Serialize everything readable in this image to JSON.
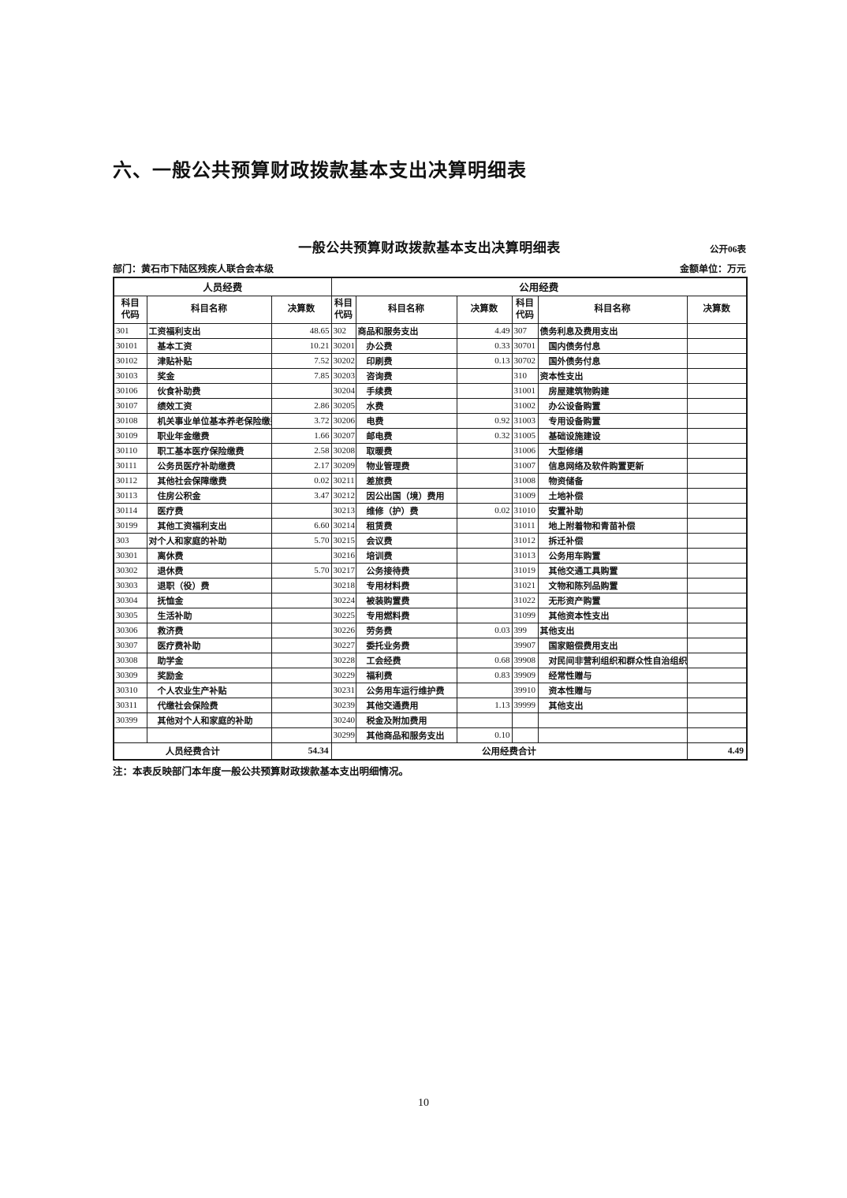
{
  "page": {
    "heading": "六、一般公共预算财政拨款基本支出决算明细表",
    "page_number": "10"
  },
  "table": {
    "title": "一般公共预算财政拨款基本支出决算明细表",
    "form_code": "公开06表",
    "department": "部门：黄石市下陆区残疾人联合会本级",
    "unit": "金额单位：万元",
    "group_headers": {
      "personnel": "人员经费",
      "public": "公用经费"
    },
    "col_headers": {
      "code": "科目\n代码",
      "name": "科目名称",
      "amount": "决算数"
    },
    "rows": [
      [
        "301",
        "工资福利支出",
        "48.65",
        "302",
        "商品和服务支出",
        "4.49",
        "307",
        "债务利息及费用支出",
        ""
      ],
      [
        "30101",
        "基本工资",
        "10.21",
        "30201",
        "办公费",
        "0.33",
        "30701",
        "国内债务付息",
        ""
      ],
      [
        "30102",
        "津贴补贴",
        "7.52",
        "30202",
        "印刷费",
        "0.13",
        "30702",
        "国外债务付息",
        ""
      ],
      [
        "30103",
        "奖金",
        "7.85",
        "30203",
        "咨询费",
        "",
        "310",
        "资本性支出",
        ""
      ],
      [
        "30106",
        "伙食补助费",
        "",
        "30204",
        "手续费",
        "",
        "31001",
        "房屋建筑物购建",
        ""
      ],
      [
        "30107",
        "绩效工资",
        "2.86",
        "30205",
        "水费",
        "",
        "31002",
        "办公设备购置",
        ""
      ],
      [
        "30108",
        "机关事业单位基本养老保险缴费",
        "3.72",
        "30206",
        "电费",
        "0.92",
        "31003",
        "专用设备购置",
        ""
      ],
      [
        "30109",
        "职业年金缴费",
        "1.66",
        "30207",
        "邮电费",
        "0.32",
        "31005",
        "基础设施建设",
        ""
      ],
      [
        "30110",
        "职工基本医疗保险缴费",
        "2.58",
        "30208",
        "取暖费",
        "",
        "31006",
        "大型修缮",
        ""
      ],
      [
        "30111",
        "公务员医疗补助缴费",
        "2.17",
        "30209",
        "物业管理费",
        "",
        "31007",
        "信息网络及软件购置更新",
        ""
      ],
      [
        "30112",
        "其他社会保障缴费",
        "0.02",
        "30211",
        "差旅费",
        "",
        "31008",
        "物资储备",
        ""
      ],
      [
        "30113",
        "住房公积金",
        "3.47",
        "30212",
        "因公出国（境）费用",
        "",
        "31009",
        "土地补偿",
        ""
      ],
      [
        "30114",
        "医疗费",
        "",
        "30213",
        "维修（护）费",
        "0.02",
        "31010",
        "安置补助",
        ""
      ],
      [
        "30199",
        "其他工资福利支出",
        "6.60",
        "30214",
        "租赁费",
        "",
        "31011",
        "地上附着物和青苗补偿",
        ""
      ],
      [
        "303",
        "对个人和家庭的补助",
        "5.70",
        "30215",
        "会议费",
        "",
        "31012",
        "拆迁补偿",
        ""
      ],
      [
        "30301",
        "离休费",
        "",
        "30216",
        "培训费",
        "",
        "31013",
        "公务用车购置",
        ""
      ],
      [
        "30302",
        "退休费",
        "5.70",
        "30217",
        "公务接待费",
        "",
        "31019",
        "其他交通工具购置",
        ""
      ],
      [
        "30303",
        "退职（役）费",
        "",
        "30218",
        "专用材料费",
        "",
        "31021",
        "文物和陈列品购置",
        ""
      ],
      [
        "30304",
        "抚恤金",
        "",
        "30224",
        "被装购置费",
        "",
        "31022",
        "无形资产购置",
        ""
      ],
      [
        "30305",
        "生活补助",
        "",
        "30225",
        "专用燃料费",
        "",
        "31099",
        "其他资本性支出",
        ""
      ],
      [
        "30306",
        "救济费",
        "",
        "30226",
        "劳务费",
        "0.03",
        "399",
        "其他支出",
        ""
      ],
      [
        "30307",
        "医疗费补助",
        "",
        "30227",
        "委托业务费",
        "",
        "39907",
        "国家赔偿费用支出",
        ""
      ],
      [
        "30308",
        "助学金",
        "",
        "30228",
        "工会经费",
        "0.68",
        "39908",
        "对民间非营利组织和群众性自治组织补贴",
        ""
      ],
      [
        "30309",
        "奖励金",
        "",
        "30229",
        "福利费",
        "0.83",
        "39909",
        "经常性赠与",
        ""
      ],
      [
        "30310",
        "个人农业生产补贴",
        "",
        "30231",
        "公务用车运行维护费",
        "",
        "39910",
        "资本性赠与",
        ""
      ],
      [
        "30311",
        "代缴社会保险费",
        "",
        "30239",
        "其他交通费用",
        "1.13",
        "39999",
        "其他支出",
        ""
      ],
      [
        "30399",
        "其他对个人和家庭的补助",
        "",
        "30240",
        "税金及附加费用",
        "",
        "",
        "",
        ""
      ],
      [
        "",
        "",
        "",
        "30299",
        "其他商品和服务支出",
        "0.10",
        "",
        "",
        ""
      ]
    ],
    "totals": {
      "personnel_label": "人员经费合计",
      "personnel_value": "54.34",
      "public_label": "公用经费合计",
      "public_value": "4.49"
    },
    "note": "注：本表反映部门本年度一般公共预算财政拨款基本支出明细情况。"
  }
}
